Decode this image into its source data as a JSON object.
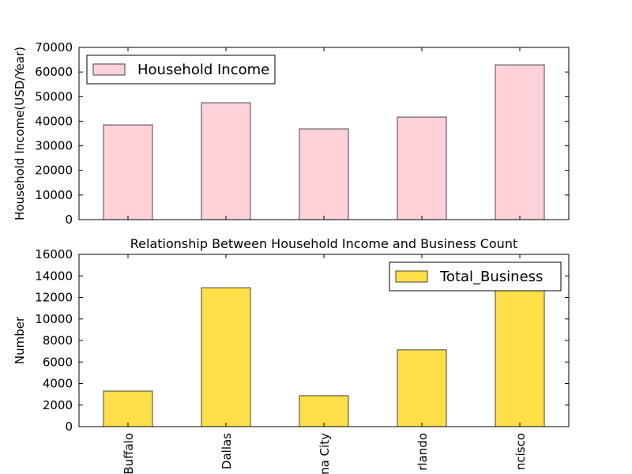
{
  "chart_data": [
    {
      "type": "bar",
      "ylabel": "Household Income(USD/Year)",
      "series": [
        {
          "name": "Household Income",
          "color": "#ffd1d9",
          "values": [
            38500,
            47500,
            36900,
            41700,
            62900
          ]
        }
      ],
      "ylim": [
        0,
        70000
      ],
      "yticks": [
        0,
        10000,
        20000,
        30000,
        40000,
        50000,
        60000,
        70000
      ],
      "legend": "upper-left"
    },
    {
      "type": "bar",
      "title": "Relationship Between Household Income and Business Count",
      "ylabel": "Number",
      "categories": [
        "Buffalo",
        "Dallas",
        "na City",
        "rlando",
        "ncisco"
      ],
      "series": [
        {
          "name": "Total_Business",
          "color": "#ffe048",
          "values": [
            3300,
            12900,
            2870,
            7130,
            12700
          ]
        }
      ],
      "ylim": [
        0,
        16000
      ],
      "yticks": [
        0,
        2000,
        4000,
        6000,
        8000,
        10000,
        12000,
        14000,
        16000
      ],
      "legend": "upper-right"
    }
  ]
}
